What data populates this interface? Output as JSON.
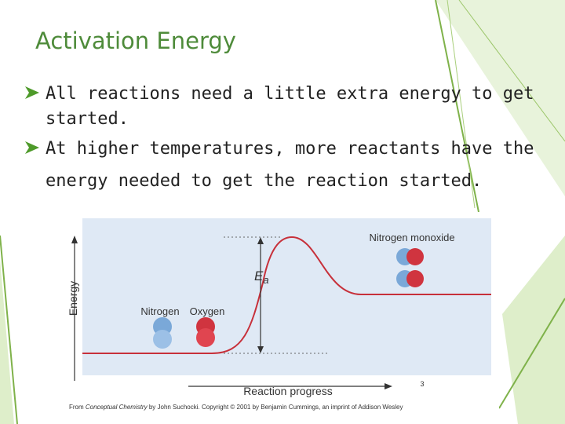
{
  "title": "Activation Energy",
  "bullets": [
    "All reactions need a little extra energy to get",
    "started.",
    "At higher temperatures, more reactants have the",
    "energy needed to get the reaction started."
  ],
  "figure": {
    "y_axis_label": "Energy",
    "x_axis_label": "Reaction progress",
    "energy_symbol": "E",
    "energy_subscript": "a",
    "reactant_labels": [
      "Nitrogen",
      "Oxygen"
    ],
    "product_label": "Nitrogen monoxide",
    "credit": [
      "From ",
      "Conceptual Chemistry",
      " by John Suchocki. Copyright © 2001 by Benjamin Cummings, an imprint of Addison Wesley"
    ]
  },
  "page_number": "3"
}
